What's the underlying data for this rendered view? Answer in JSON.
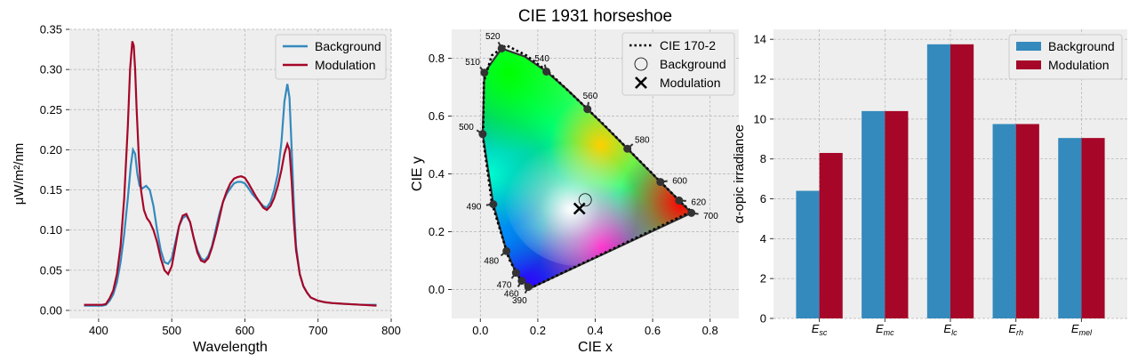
{
  "colors": {
    "background_series": "#348abd",
    "modulation_series": "#a60628",
    "axes_face": "#eeeeee",
    "grid": "#b2b2b2",
    "locus": "#333333"
  },
  "chart_data": [
    {
      "type": "line",
      "title": "",
      "xlabel": "Wavelength",
      "ylabel": "μW/m²/nm",
      "xlim": [
        360,
        800
      ],
      "ylim": [
        -0.01,
        0.35
      ],
      "xticks": [
        400,
        500,
        600,
        700,
        800
      ],
      "yticks": [
        0.0,
        0.05,
        0.1,
        0.15,
        0.2,
        0.25,
        0.3,
        0.35
      ],
      "ytick_labels": [
        "0.00",
        "0.05",
        "0.10",
        "0.15",
        "0.20",
        "0.25",
        "0.30",
        "0.35"
      ],
      "grid": true,
      "legend": "top-right",
      "series": [
        {
          "name": "Background",
          "x": [
            380,
            395,
            400,
            405,
            410,
            415,
            420,
            425,
            430,
            435,
            440,
            444,
            447,
            450,
            453,
            456,
            460,
            465,
            470,
            475,
            480,
            485,
            490,
            495,
            500,
            505,
            510,
            515,
            520,
            525,
            530,
            535,
            540,
            545,
            550,
            555,
            560,
            565,
            570,
            575,
            580,
            585,
            590,
            595,
            600,
            605,
            610,
            615,
            620,
            625,
            630,
            635,
            640,
            645,
            650,
            654,
            658,
            661,
            664,
            667,
            670,
            675,
            680,
            685,
            690,
            700,
            710,
            720,
            740,
            760,
            780
          ],
          "values": [
            0.006,
            0.006,
            0.006,
            0.006,
            0.007,
            0.012,
            0.02,
            0.035,
            0.06,
            0.095,
            0.14,
            0.18,
            0.2,
            0.195,
            0.17,
            0.155,
            0.152,
            0.155,
            0.15,
            0.13,
            0.1,
            0.075,
            0.06,
            0.058,
            0.065,
            0.085,
            0.105,
            0.115,
            0.118,
            0.11,
            0.09,
            0.075,
            0.065,
            0.062,
            0.068,
            0.08,
            0.1,
            0.12,
            0.135,
            0.145,
            0.152,
            0.158,
            0.16,
            0.16,
            0.158,
            0.152,
            0.145,
            0.14,
            0.135,
            0.13,
            0.128,
            0.135,
            0.15,
            0.17,
            0.21,
            0.26,
            0.282,
            0.265,
            0.2,
            0.13,
            0.08,
            0.045,
            0.03,
            0.022,
            0.016,
            0.012,
            0.01,
            0.009,
            0.008,
            0.007,
            0.007
          ]
        },
        {
          "name": "Modulation",
          "x": [
            380,
            395,
            400,
            405,
            410,
            415,
            420,
            425,
            430,
            435,
            440,
            443,
            446,
            448,
            450,
            452,
            455,
            458,
            462,
            466,
            470,
            475,
            480,
            485,
            490,
            495,
            500,
            505,
            510,
            515,
            520,
            525,
            530,
            535,
            540,
            545,
            550,
            555,
            560,
            565,
            570,
            575,
            580,
            585,
            590,
            595,
            600,
            605,
            610,
            615,
            620,
            625,
            630,
            635,
            640,
            645,
            650,
            654,
            658,
            661,
            664,
            667,
            670,
            675,
            680,
            685,
            690,
            700,
            710,
            720,
            740,
            760,
            780
          ],
          "values": [
            0.007,
            0.007,
            0.007,
            0.007,
            0.008,
            0.015,
            0.025,
            0.045,
            0.08,
            0.14,
            0.23,
            0.3,
            0.335,
            0.33,
            0.3,
            0.25,
            0.19,
            0.15,
            0.125,
            0.115,
            0.11,
            0.1,
            0.085,
            0.065,
            0.05,
            0.045,
            0.055,
            0.08,
            0.105,
            0.118,
            0.12,
            0.11,
            0.09,
            0.072,
            0.062,
            0.06,
            0.065,
            0.078,
            0.095,
            0.115,
            0.135,
            0.148,
            0.158,
            0.164,
            0.166,
            0.167,
            0.165,
            0.158,
            0.15,
            0.142,
            0.135,
            0.128,
            0.125,
            0.13,
            0.14,
            0.155,
            0.175,
            0.195,
            0.207,
            0.2,
            0.16,
            0.11,
            0.075,
            0.045,
            0.03,
            0.022,
            0.016,
            0.012,
            0.01,
            0.009,
            0.008,
            0.007,
            0.006
          ]
        }
      ]
    },
    {
      "type": "scatter",
      "title": "CIE 1931 horseshoe",
      "xlabel": "CIE x",
      "ylabel": "CIE y",
      "xlim": [
        -0.1,
        0.9
      ],
      "ylim": [
        -0.1,
        0.9
      ],
      "xticks": [
        0.0,
        0.2,
        0.4,
        0.6,
        0.8
      ],
      "yticks": [
        0.0,
        0.2,
        0.4,
        0.6,
        0.8
      ],
      "tick_labels": [
        "0.0",
        "0.2",
        "0.4",
        "0.6",
        "0.8"
      ],
      "grid": true,
      "legend": "top-right",
      "legend_entries": [
        "CIE 170-2",
        "Background",
        "Modulation"
      ],
      "locus": [
        [
          0.175,
          0.005
        ],
        [
          0.174,
          0.005
        ],
        [
          0.17,
          0.01
        ],
        [
          0.16,
          0.02
        ],
        [
          0.144,
          0.03
        ],
        [
          0.124,
          0.058
        ],
        [
          0.091,
          0.133
        ],
        [
          0.045,
          0.295
        ],
        [
          0.008,
          0.538
        ],
        [
          0.014,
          0.75
        ],
        [
          0.074,
          0.834
        ],
        [
          0.155,
          0.806
        ],
        [
          0.23,
          0.754
        ],
        [
          0.302,
          0.692
        ],
        [
          0.373,
          0.624
        ],
        [
          0.444,
          0.555
        ],
        [
          0.512,
          0.487
        ],
        [
          0.575,
          0.424
        ],
        [
          0.627,
          0.372
        ],
        [
          0.666,
          0.334
        ],
        [
          0.692,
          0.308
        ],
        [
          0.713,
          0.287
        ],
        [
          0.735,
          0.265
        ]
      ],
      "cie170_locus": [
        [
          0.175,
          0.005
        ],
        [
          0.16,
          0.012
        ],
        [
          0.14,
          0.032
        ],
        [
          0.1,
          0.105
        ],
        [
          0.04,
          0.3
        ],
        [
          0.01,
          0.52
        ],
        [
          0.012,
          0.72
        ],
        [
          0.04,
          0.81
        ],
        [
          0.09,
          0.845
        ],
        [
          0.16,
          0.81
        ],
        [
          0.24,
          0.75
        ],
        [
          0.33,
          0.665
        ],
        [
          0.42,
          0.58
        ],
        [
          0.51,
          0.49
        ],
        [
          0.59,
          0.41
        ],
        [
          0.65,
          0.35
        ],
        [
          0.7,
          0.3
        ],
        [
          0.735,
          0.27
        ],
        [
          0.175,
          0.005
        ]
      ],
      "wavelength_labels": [
        {
          "nm": "390",
          "x": 0.167,
          "y": 0.009
        },
        {
          "nm": "460",
          "x": 0.144,
          "y": 0.03
        },
        {
          "nm": "470",
          "x": 0.124,
          "y": 0.058
        },
        {
          "nm": "480",
          "x": 0.091,
          "y": 0.133
        },
        {
          "nm": "490",
          "x": 0.045,
          "y": 0.295
        },
        {
          "nm": "500",
          "x": 0.008,
          "y": 0.538
        },
        {
          "nm": "510",
          "x": 0.014,
          "y": 0.75
        },
        {
          "nm": "520",
          "x": 0.074,
          "y": 0.834
        },
        {
          "nm": "540",
          "x": 0.23,
          "y": 0.754
        },
        {
          "nm": "560",
          "x": 0.373,
          "y": 0.624
        },
        {
          "nm": "580",
          "x": 0.512,
          "y": 0.487
        },
        {
          "nm": "600",
          "x": 0.627,
          "y": 0.372
        },
        {
          "nm": "620",
          "x": 0.692,
          "y": 0.308
        },
        {
          "nm": "700",
          "x": 0.735,
          "y": 0.265
        }
      ],
      "points": [
        {
          "name": "Background",
          "x": 0.365,
          "y": 0.31,
          "marker": "circle"
        },
        {
          "name": "Modulation",
          "x": 0.345,
          "y": 0.28,
          "marker": "x"
        }
      ]
    },
    {
      "type": "bar",
      "title": "",
      "xlabel": "",
      "ylabel": "α-opic irradiance",
      "ylim": [
        0,
        14.5
      ],
      "yticks": [
        0,
        2,
        4,
        6,
        8,
        10,
        12,
        14
      ],
      "grid": true,
      "legend": "top-right",
      "categories": [
        {
          "base": "E",
          "sub": "sc"
        },
        {
          "base": "E",
          "sub": "mc"
        },
        {
          "base": "E",
          "sub": "lc"
        },
        {
          "base": "E",
          "sub": "rh"
        },
        {
          "base": "E",
          "sub": "mel"
        }
      ],
      "series": [
        {
          "name": "Background",
          "values": [
            6.4,
            10.4,
            13.75,
            9.75,
            9.05
          ]
        },
        {
          "name": "Modulation",
          "values": [
            8.3,
            10.4,
            13.75,
            9.75,
            9.05
          ]
        }
      ]
    }
  ]
}
